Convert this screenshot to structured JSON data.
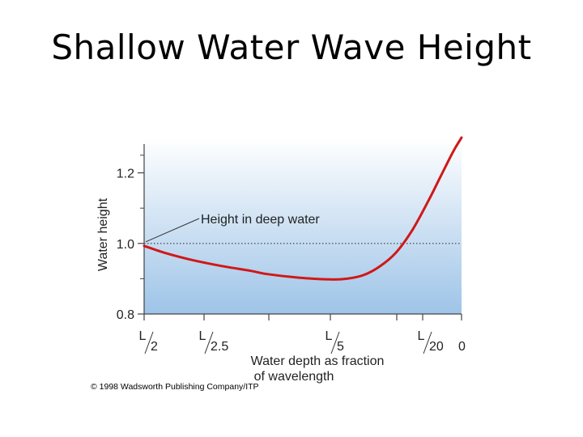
{
  "slide": {
    "title": "Shallow Water Wave Height",
    "copyright": "© 1998 Wadsworth Publishing Company/ITP"
  },
  "colors": {
    "plot_top": "#ffffff",
    "plot_bottom": "#9ec4e8",
    "curve": "#d01818",
    "reference_line": "#555555"
  },
  "chart_data": {
    "type": "line",
    "title": "",
    "xlabel_lines": [
      "Water depth as fraction",
      "of wavelength"
    ],
    "ylabel": "Water height",
    "ylim": [
      0.8,
      1.2
    ],
    "y_ticks": [
      0.8,
      1.0,
      1.2
    ],
    "y_tick_labels": [
      "0.8",
      "1.0",
      "1.2"
    ],
    "x_tick_labels": [
      {
        "num": "L",
        "den": "2"
      },
      {
        "num": "L",
        "den": "2.5"
      },
      {
        "num": "",
        "den": ""
      },
      {
        "num": "L",
        "den": "5"
      },
      {
        "num": "",
        "den": ""
      },
      {
        "num": "L",
        "den": "20"
      },
      {
        "num": "",
        "den": "0"
      }
    ],
    "reference_line": {
      "y": 1.0,
      "label": "Height in deep water",
      "style": "dotted"
    },
    "series": [
      {
        "x_tick_positions": [
          0,
          0.35,
          0.75,
          1.25,
          1.75,
          2.0,
          2.5,
          3.0,
          3.25,
          3.5,
          3.75,
          4.0,
          4.25,
          4.5,
          4.65,
          4.8,
          4.9,
          5.0
        ],
        "y": [
          0.993,
          0.973,
          0.955,
          0.937,
          0.922,
          0.913,
          0.903,
          0.898,
          0.9,
          0.91,
          0.935,
          0.975,
          1.04,
          1.125,
          1.18,
          1.235,
          1.27,
          1.3
        ]
      }
    ]
  }
}
